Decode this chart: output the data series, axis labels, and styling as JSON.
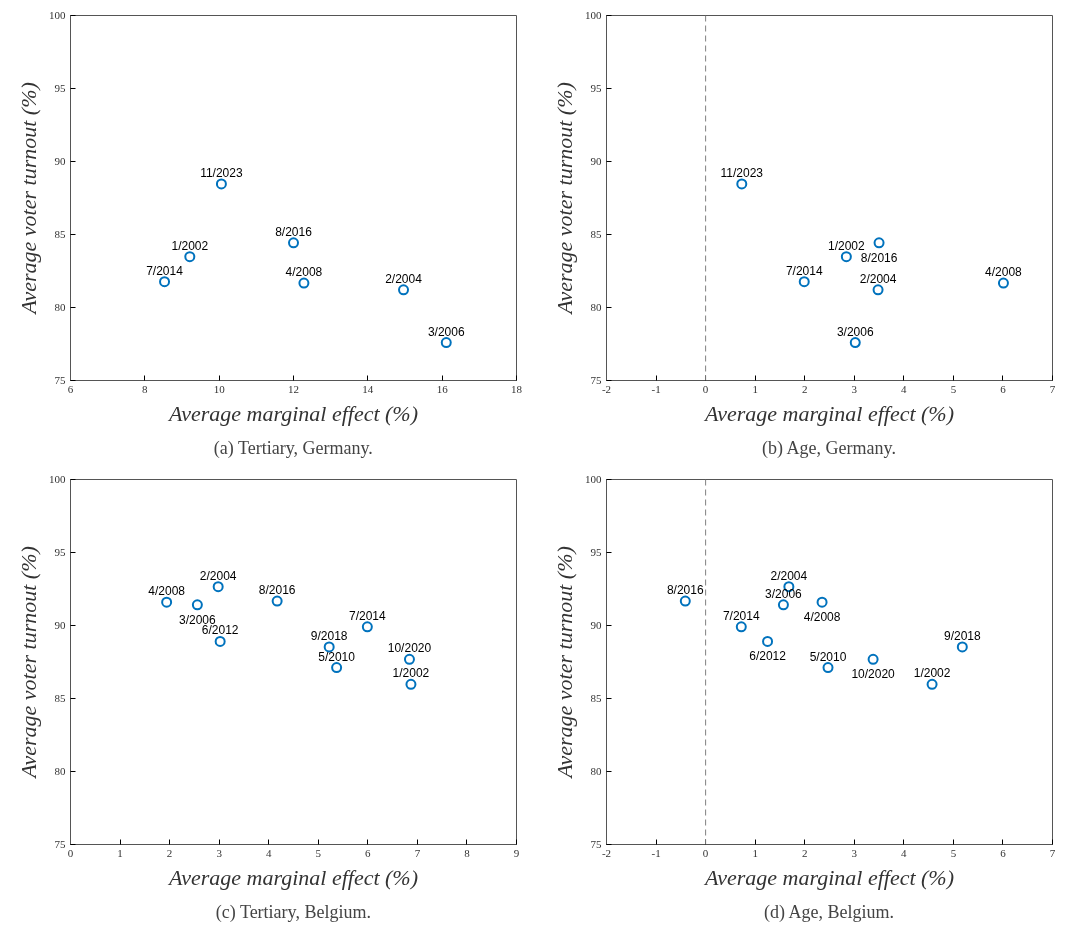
{
  "chart_data": [
    {
      "type": "scatter",
      "title": "(a) Tertiary, Germany.",
      "xlabel": "Average marginal effect (%)",
      "ylabel": "Average voter turnout (%)",
      "xlim": [
        6,
        18
      ],
      "xticks": [
        6,
        8,
        10,
        12,
        14,
        16,
        18
      ],
      "ylim": [
        75,
        100
      ],
      "yticks": [
        75,
        80,
        85,
        90,
        95,
        100
      ],
      "grid": false,
      "marker": "circle",
      "series": [
        {
          "color": "#0072bd",
          "x": [
            10.06,
            12.0,
            9.21,
            8.53,
            12.28,
            14.96,
            16.11
          ],
          "values": [
            88.46,
            84.43,
            83.48,
            81.77,
            81.67,
            81.21,
            77.6
          ]
        }
      ],
      "annotations": [
        {
          "text": "11/2023",
          "x": 10.06,
          "y": 88.46
        },
        {
          "text": "8/2016",
          "x": 12.0,
          "y": 84.43
        },
        {
          "text": "1/2002",
          "x": 9.21,
          "y": 83.48
        },
        {
          "text": "7/2014",
          "x": 8.53,
          "y": 81.77
        },
        {
          "text": "4/2008",
          "x": 12.28,
          "y": 81.67
        },
        {
          "text": "2/2004",
          "x": 14.96,
          "y": 81.21
        },
        {
          "text": "3/2006",
          "x": 16.11,
          "y": 77.6
        }
      ]
    },
    {
      "type": "scatter",
      "title": "(b) Age, Germany.",
      "xlabel": "Average marginal effect (%)",
      "ylabel": "Average voter turnout (%)",
      "xlim": [
        -2,
        7
      ],
      "xticks": [
        -2,
        -1,
        0,
        1,
        2,
        3,
        4,
        5,
        6,
        7
      ],
      "ylim": [
        75,
        100
      ],
      "yticks": [
        75,
        80,
        85,
        90,
        95,
        100
      ],
      "grid": false,
      "marker": "circle",
      "series": [
        {
          "color": "#0072bd",
          "x": [
            0.73,
            1.99,
            2.84,
            3.5,
            3.48,
            3.02,
            6.01
          ],
          "values": [
            88.46,
            81.77,
            83.48,
            84.43,
            81.21,
            77.6,
            81.67
          ]
        }
      ],
      "ref_lines": [
        {
          "axis": "x",
          "value": 0,
          "label": null,
          "color": "#808080",
          "line_style": "dashed"
        }
      ],
      "annotations": [
        {
          "text": "11/2023",
          "x": 0.73,
          "y": 88.46
        },
        {
          "text": "7/2014",
          "x": 1.99,
          "y": 81.77
        },
        {
          "text": "1/2002",
          "x": 2.84,
          "y": 83.48
        },
        {
          "text": "8/2016",
          "x": 3.5,
          "y": 84.43
        },
        {
          "text": "2/2004",
          "x": 3.48,
          "y": 81.21
        },
        {
          "text": "3/2006",
          "x": 3.02,
          "y": 77.6
        },
        {
          "text": "4/2008",
          "x": 6.01,
          "y": 81.67
        }
      ]
    },
    {
      "type": "scatter",
      "title": "(c) Tertiary, Belgium.",
      "xlabel": "Average marginal effect (%)",
      "ylabel": "Average voter turnout (%)",
      "xlim": [
        0,
        9
      ],
      "xticks": [
        0,
        1,
        2,
        3,
        4,
        5,
        6,
        7,
        8,
        9
      ],
      "ylim": [
        75,
        100
      ],
      "yticks": [
        75,
        80,
        85,
        90,
        95,
        100
      ],
      "grid": false,
      "marker": "circle",
      "series": [
        {
          "color": "#0072bd",
          "x": [
            1.94,
            2.56,
            2.98,
            3.02,
            4.17,
            5.99,
            5.22,
            5.37,
            6.84,
            6.87
          ],
          "values": [
            91.6,
            91.42,
            92.66,
            88.91,
            91.67,
            89.91,
            88.53,
            87.12,
            87.68,
            85.97
          ]
        }
      ],
      "annotations": [
        {
          "text": "4/2008",
          "x": 1.94,
          "y": 91.6
        },
        {
          "text": "3/2006",
          "x": 2.56,
          "y": 91.42
        },
        {
          "text": "2/2004",
          "x": 2.98,
          "y": 92.66
        },
        {
          "text": "6/2012",
          "x": 3.02,
          "y": 88.91
        },
        {
          "text": "8/2016",
          "x": 4.17,
          "y": 91.67
        },
        {
          "text": "7/2014",
          "x": 5.99,
          "y": 89.91
        },
        {
          "text": "9/2018",
          "x": 5.22,
          "y": 88.53
        },
        {
          "text": "5/2010",
          "x": 5.37,
          "y": 87.12
        },
        {
          "text": "10/2020",
          "x": 6.84,
          "y": 87.68
        },
        {
          "text": "1/2002",
          "x": 6.87,
          "y": 85.97
        }
      ]
    },
    {
      "type": "scatter",
      "title": "(d) Age, Belgium.",
      "xlabel": "Average marginal effect (%)",
      "ylabel": "Average voter turnout (%)",
      "xlim": [
        -2,
        7
      ],
      "xticks": [
        -2,
        -1,
        0,
        1,
        2,
        3,
        4,
        5,
        6,
        7
      ],
      "ylim": [
        75,
        100
      ],
      "yticks": [
        75,
        80,
        85,
        90,
        95,
        100
      ],
      "grid": false,
      "marker": "circle",
      "series": [
        {
          "color": "#0072bd",
          "x": [
            -0.41,
            0.72,
            1.25,
            1.57,
            1.68,
            2.35,
            2.47,
            3.38,
            4.57,
            5.18
          ],
          "values": [
            91.67,
            89.91,
            88.91,
            91.42,
            92.66,
            91.6,
            87.12,
            87.68,
            85.97,
            88.53
          ]
        }
      ],
      "ref_lines": [
        {
          "axis": "x",
          "value": 0,
          "label": null,
          "color": "#808080",
          "line_style": "dashed"
        }
      ],
      "annotations": [
        {
          "text": "8/2016",
          "x": -0.41,
          "y": 91.67
        },
        {
          "text": "7/2014",
          "x": 0.72,
          "y": 89.91
        },
        {
          "text": "6/2012",
          "x": 1.25,
          "y": 88.91
        },
        {
          "text": "3/2006",
          "x": 1.57,
          "y": 91.42
        },
        {
          "text": "2/2004",
          "x": 1.68,
          "y": 92.66
        },
        {
          "text": "4/2008",
          "x": 2.35,
          "y": 91.6
        },
        {
          "text": "5/2010",
          "x": 2.47,
          "y": 87.12
        },
        {
          "text": "10/2020",
          "x": 3.38,
          "y": 87.68
        },
        {
          "text": "1/2002",
          "x": 4.57,
          "y": 85.97
        },
        {
          "text": "9/2018",
          "x": 5.18,
          "y": 88.53
        }
      ]
    }
  ]
}
